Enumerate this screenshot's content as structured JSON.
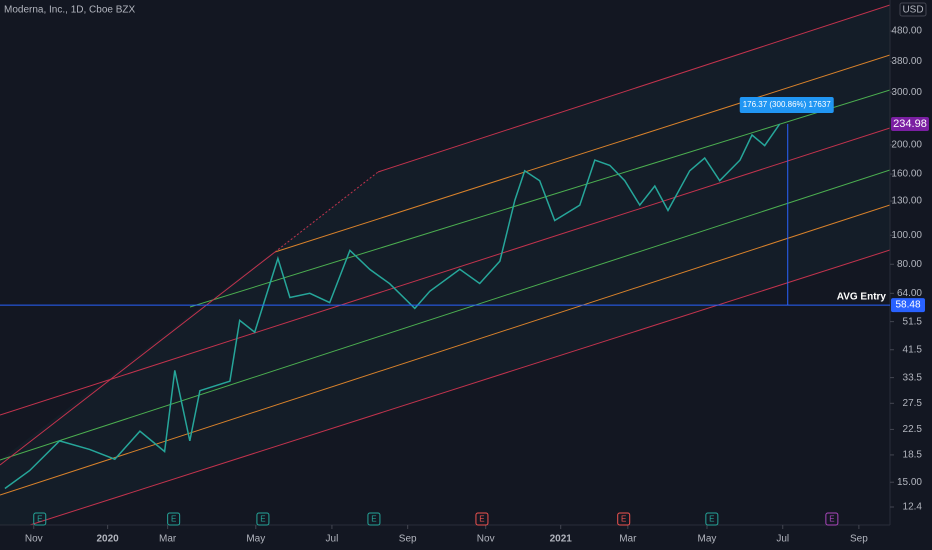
{
  "header": {
    "title": "Moderna, Inc., 1D, Cboe BZX",
    "currency": "USD"
  },
  "chart_data": {
    "type": "line",
    "log_scale": true,
    "color": "#26a69a",
    "x": [
      -0.77,
      -0.11,
      0.69,
      1.49,
      2.16,
      2.83,
      3.49,
      3.76,
      4.16,
      4.43,
      5.23,
      5.49,
      5.89,
      6.24,
      6.51,
      6.83,
      7.36,
      7.89,
      8.43,
      8.96,
      9.49,
      10.16,
      10.56,
      11.36,
      11.89,
      12.43,
      12.83,
      13.09,
      13.49,
      13.89,
      14.56,
      14.96,
      15.36,
      15.76,
      16.16,
      16.56,
      16.91,
      17.49,
      17.89,
      18.29,
      18.83,
      19.15,
      19.49,
      19.89
    ],
    "values": [
      14.3,
      16.4,
      20.6,
      19.3,
      17.9,
      22.2,
      19,
      35.4,
      20.6,
      30.3,
      32.6,
      52,
      47.5,
      65.4,
      83.7,
      62,
      64,
      59.6,
      89,
      76.9,
      68.9,
      57,
      65,
      77,
      69,
      82,
      131,
      164,
      152,
      112,
      126,
      178,
      171,
      152,
      126,
      146,
      121,
      164,
      181,
      152,
      178,
      216,
      199,
      234.98
    ],
    "xlim": [
      -0.9,
      22.83
    ],
    "xticks": [
      {
        "value": 0,
        "label": "Nov"
      },
      {
        "value": 1.97,
        "label": "2020"
      },
      {
        "value": 3.57,
        "label": "Mar"
      },
      {
        "value": 5.92,
        "label": "May"
      },
      {
        "value": 7.95,
        "label": "Jul"
      },
      {
        "value": 9.97,
        "label": "Sep"
      },
      {
        "value": 12.05,
        "label": "Nov"
      },
      {
        "value": 14.05,
        "label": "2021"
      },
      {
        "value": 15.84,
        "label": "Mar"
      },
      {
        "value": 17.95,
        "label": "May"
      },
      {
        "value": 19.97,
        "label": "Jul"
      },
      {
        "value": 22,
        "label": "Sep"
      }
    ],
    "ylim": [
      10.8,
      609
    ],
    "yticks": [
      {
        "value": 480,
        "label": "480.00"
      },
      {
        "value": 380,
        "label": "380.00"
      },
      {
        "value": 300,
        "label": "300.00"
      },
      {
        "value": 200,
        "label": "200.00"
      },
      {
        "value": 160,
        "label": "160.00"
      },
      {
        "value": 130,
        "label": "130.00"
      },
      {
        "value": 100,
        "label": "100.00"
      },
      {
        "value": 80,
        "label": "80.00"
      },
      {
        "value": 64,
        "label": "64.00"
      },
      51.5,
      41.5,
      33.5,
      27.5,
      22.5,
      18.5,
      {
        "value": 15,
        "label": "15.00"
      },
      12.4
    ],
    "last_price": {
      "value": 234.98,
      "color": "#7b1fa2"
    },
    "horizontal_line": {
      "value": 58.48,
      "label": "AVG Entry",
      "color": "#2962ff"
    },
    "measurement": {
      "label": "176.37 (300.86%) 17637",
      "color": "#2962ff"
    },
    "events": [
      {
        "label": "E",
        "x": 0.16,
        "color": "#26a69a"
      },
      {
        "label": "E",
        "x": 3.73,
        "color": "#26a69a"
      },
      {
        "label": "E",
        "x": 6.11,
        "color": "#26a69a"
      },
      {
        "label": "E",
        "x": 9.07,
        "color": "#26a69a"
      },
      {
        "label": "E",
        "x": 11.95,
        "color": "#ef5350"
      },
      {
        "label": "E",
        "x": 15.73,
        "color": "#ef5350"
      },
      {
        "label": "E",
        "x": 18.08,
        "color": "#26a69a"
      },
      {
        "label": "E",
        "x": 21.28,
        "color": "#ab47bc"
      }
    ]
  }
}
